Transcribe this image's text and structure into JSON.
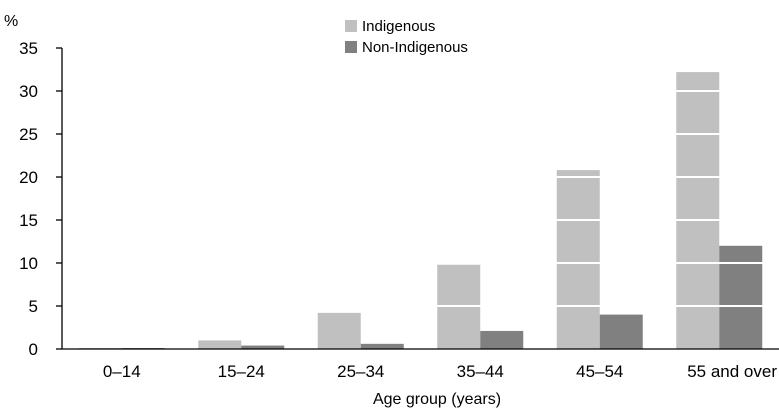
{
  "chart_data": {
    "type": "bar",
    "title": "",
    "ylabel": "%",
    "xlabel": "Age group (years)",
    "ylim": [
      0,
      35
    ],
    "yticks": [
      0,
      5,
      10,
      15,
      20,
      25,
      30,
      35
    ],
    "grid": "white horizontal lines across bars",
    "legend_position": "top-center",
    "categories": [
      "0–14",
      "15–24",
      "25–34",
      "35–44",
      "45–54",
      "55 and over"
    ],
    "series": [
      {
        "name": "Indigenous",
        "color": "#c0c0c0",
        "values": [
          0.1,
          1.0,
          4.2,
          9.8,
          20.8,
          32.2
        ]
      },
      {
        "name": "Non-Indigenous",
        "color": "#808080",
        "values": [
          0.1,
          0.4,
          0.6,
          2.1,
          4.0,
          12.0
        ]
      }
    ]
  }
}
